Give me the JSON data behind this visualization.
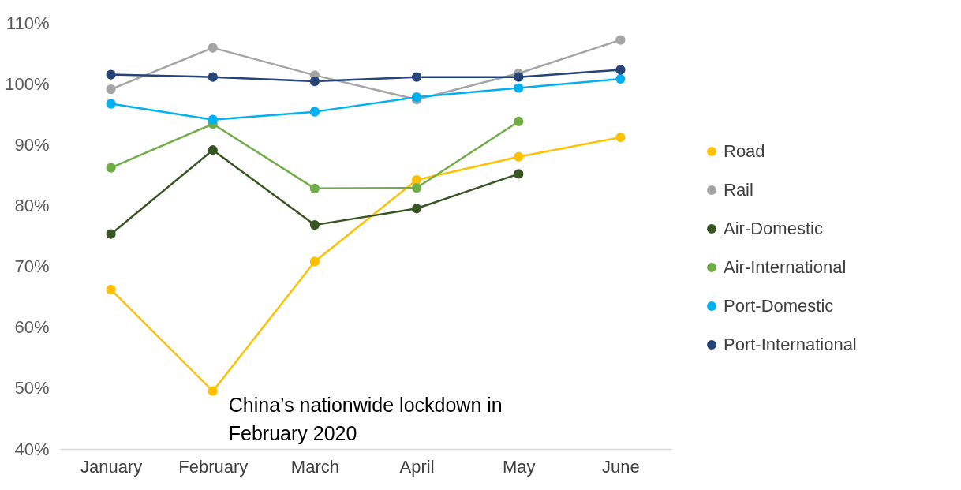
{
  "chart_data": {
    "type": "line",
    "categories": [
      "January",
      "February",
      "March",
      "April",
      "May",
      "June"
    ],
    "series": [
      {
        "name": "Road",
        "color": "#ffc000",
        "values": [
          66.2,
          49.5,
          70.8,
          84.2,
          88.0,
          91.2
        ]
      },
      {
        "name": "Rail",
        "color": "#a5a5a5",
        "values": [
          99.1,
          105.9,
          101.4,
          97.4,
          101.7,
          107.2
        ]
      },
      {
        "name": "Air-Domestic",
        "color": "#375623",
        "values": [
          75.3,
          89.1,
          76.8,
          79.5,
          85.2,
          null
        ]
      },
      {
        "name": "Air-International",
        "color": "#70ad47",
        "values": [
          86.2,
          93.4,
          82.8,
          82.9,
          93.8,
          null
        ]
      },
      {
        "name": "Port-Domestic",
        "color": "#00b0f0",
        "values": [
          96.7,
          94.1,
          95.4,
          97.8,
          99.3,
          100.8
        ]
      },
      {
        "name": "Port-International",
        "color": "#264478",
        "values": [
          101.5,
          101.1,
          100.4,
          101.1,
          101.1,
          102.3
        ]
      }
    ],
    "ylim": [
      40,
      110
    ],
    "yticks": [
      {
        "value": 40,
        "label": "40%"
      },
      {
        "value": 50,
        "label": "50%"
      },
      {
        "value": 60,
        "label": "60%"
      },
      {
        "value": 70,
        "label": "70%"
      },
      {
        "value": 80,
        "label": "80%"
      },
      {
        "value": 90,
        "label": "90%"
      },
      {
        "value": 100,
        "label": "100%"
      },
      {
        "value": 110,
        "label": "110%"
      }
    ],
    "annotations": [
      {
        "text": "China’s nationwide lockdown in February 2020",
        "x": "February",
        "y": 49.5
      }
    ],
    "legend": "right",
    "marker": "circle",
    "line_style": "solid",
    "grid": false
  }
}
